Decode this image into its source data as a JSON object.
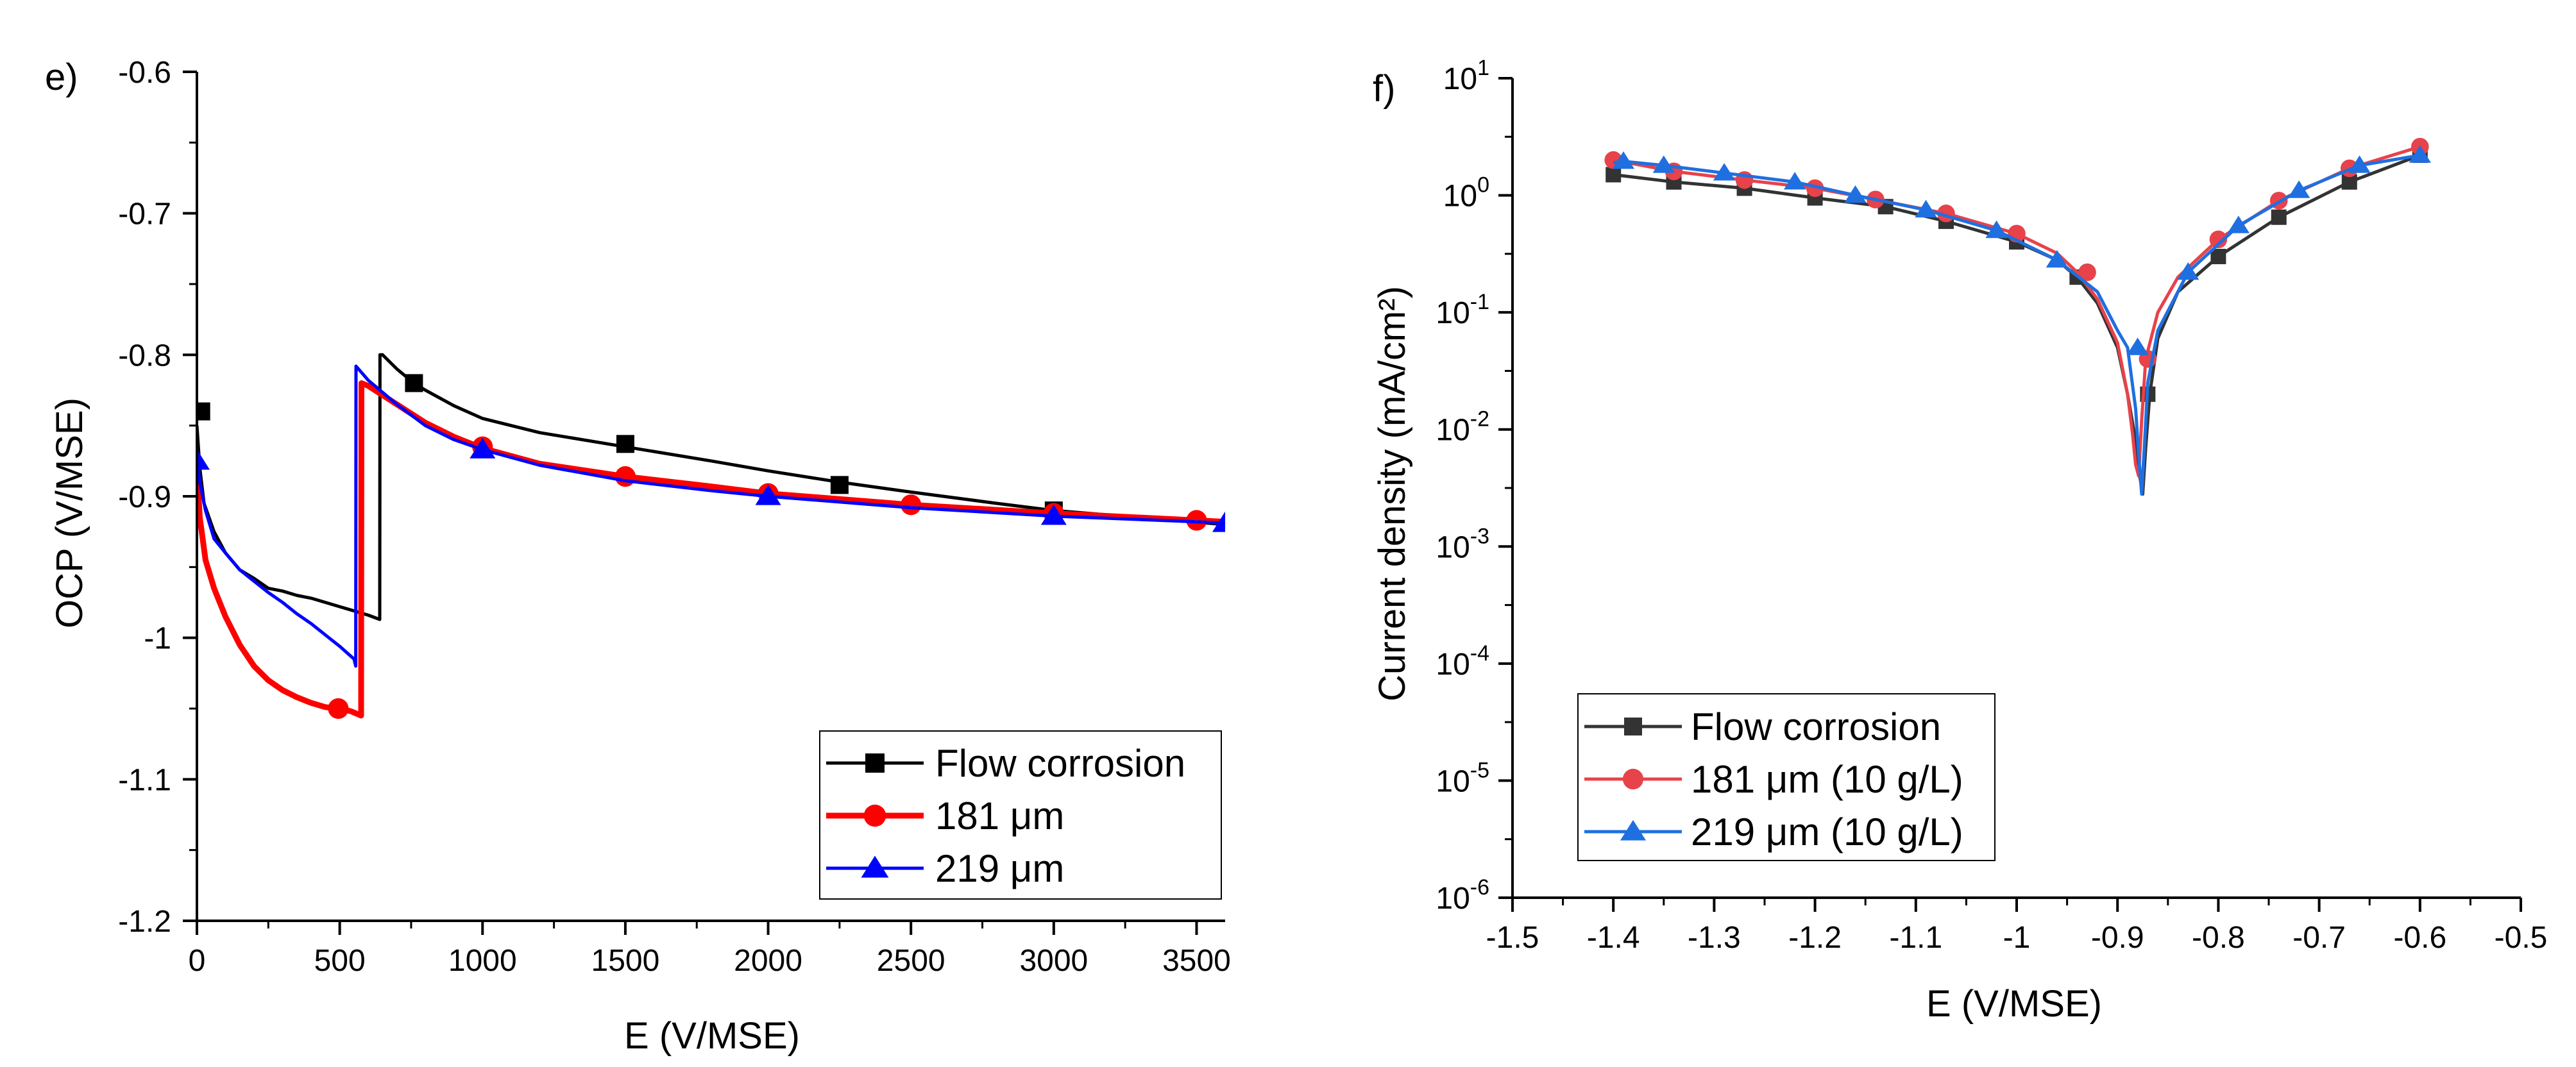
{
  "chart_data": [
    {
      "type": "line",
      "panel_label": "e)",
      "xlabel": "E (V/MSE)",
      "ylabel": "OCP (V/MSE)",
      "xlim": [
        0,
        3600
      ],
      "ylim": [
        -1.2,
        -0.6
      ],
      "xticks": [
        0,
        500,
        1000,
        1500,
        2000,
        2500,
        3000,
        3500
      ],
      "xtick_labels": [
        "0",
        "500",
        "1000",
        "1500",
        "2000",
        "2500",
        "3000",
        "3500"
      ],
      "yticks": [
        -1.2,
        -1.1,
        -1.0,
        -0.9,
        -0.8,
        -0.7,
        -0.6
      ],
      "ytick_labels": [
        "-1.2",
        "-1.1",
        "-1",
        "-0.9",
        "-0.8",
        "-0.7",
        "-0.6"
      ],
      "grid": false,
      "legend_position": "bottom-right",
      "series": [
        {
          "name": "Flow corrosion",
          "color": "#000000",
          "marker": "square",
          "x": [
            0,
            10,
            25,
            60,
            100,
            150,
            200,
            250,
            300,
            350,
            400,
            450,
            500,
            550,
            600,
            640,
            641,
            650,
            700,
            760,
            800,
            900,
            1000,
            1200,
            1500,
            1800,
            2000,
            2250,
            2500,
            2800,
            3000,
            3300,
            3600
          ],
          "y": [
            -0.85,
            -0.88,
            -0.905,
            -0.925,
            -0.94,
            -0.952,
            -0.958,
            -0.965,
            -0.967,
            -0.97,
            -0.972,
            -0.975,
            -0.978,
            -0.981,
            -0.984,
            -0.987,
            -0.8,
            -0.8,
            -0.81,
            -0.82,
            -0.825,
            -0.836,
            -0.845,
            -0.855,
            -0.865,
            -0.875,
            -0.882,
            -0.89,
            -0.897,
            -0.905,
            -0.91,
            -0.915,
            -0.92
          ],
          "marker_x": [
            15,
            760,
            1500,
            2250,
            3000
          ],
          "marker_y": [
            -0.84,
            -0.82,
            -0.863,
            -0.892,
            -0.91
          ]
        },
        {
          "name": "181 μm",
          "color": "#ff0000",
          "marker": "circle",
          "x": [
            0,
            10,
            30,
            60,
            100,
            150,
            200,
            250,
            300,
            350,
            400,
            450,
            500,
            540,
            575,
            576,
            600,
            700,
            800,
            900,
            1000,
            1200,
            1500,
            1800,
            2000,
            2500,
            3000,
            3500,
            3600
          ],
          "y": [
            -0.88,
            -0.915,
            -0.945,
            -0.965,
            -0.985,
            -1.005,
            -1.02,
            -1.03,
            -1.037,
            -1.042,
            -1.046,
            -1.049,
            -1.05,
            -1.052,
            -1.055,
            -0.82,
            -0.822,
            -0.835,
            -0.848,
            -0.858,
            -0.866,
            -0.877,
            -0.886,
            -0.893,
            -0.898,
            -0.906,
            -0.912,
            -0.917,
            -0.918
          ],
          "marker_x": [
            495,
            1000,
            1500,
            2000,
            2500,
            3000,
            3500
          ],
          "marker_y": [
            -1.05,
            -0.865,
            -0.886,
            -0.898,
            -0.906,
            -0.912,
            -0.917
          ]
        },
        {
          "name": "219 μm",
          "color": "#0000ff",
          "marker": "triangle",
          "x": [
            0,
            10,
            30,
            60,
            100,
            150,
            200,
            250,
            300,
            350,
            400,
            450,
            500,
            550,
            556,
            557,
            600,
            700,
            800,
            900,
            1000,
            1200,
            1500,
            1800,
            2000,
            2500,
            3000,
            3500,
            3600
          ],
          "y": [
            -0.87,
            -0.89,
            -0.91,
            -0.93,
            -0.94,
            -0.952,
            -0.96,
            -0.968,
            -0.975,
            -0.983,
            -0.99,
            -0.998,
            -1.006,
            -1.015,
            -1.02,
            -0.808,
            -0.818,
            -0.835,
            -0.85,
            -0.86,
            -0.867,
            -0.878,
            -0.889,
            -0.896,
            -0.9,
            -0.908,
            -0.914,
            -0.918,
            -0.919
          ],
          "marker_x": [
            0,
            1000,
            2000,
            3000,
            3600
          ],
          "marker_y": [
            -0.875,
            -0.867,
            -0.9,
            -0.914,
            -0.919
          ]
        }
      ]
    },
    {
      "type": "line",
      "panel_label": "f)",
      "xlabel": "E (V/MSE)",
      "ylabel": "Current density (mA/cm²)",
      "xlim": [
        -1.5,
        -0.5
      ],
      "ylim": [
        1e-06,
        10
      ],
      "yscale": "log",
      "xticks": [
        -1.5,
        -1.4,
        -1.3,
        -1.2,
        -1.1,
        -1.0,
        -0.9,
        -0.8,
        -0.7,
        -0.6,
        -0.5
      ],
      "xtick_labels": [
        "-1.5",
        "-1.4",
        "-1.3",
        "-1.2",
        "-1.1",
        "-1",
        "-0.9",
        "-0.8",
        "-0.7",
        "-0.6",
        "-0.5"
      ],
      "ytick_exponents": [
        "-6",
        "-5",
        "-4",
        "-3",
        "-2",
        "-1",
        "0",
        "1"
      ],
      "ytick_base": "10",
      "grid": false,
      "legend_position": "bottom-left",
      "series": [
        {
          "name": "Flow corrosion",
          "color": "#333333",
          "marker": "square",
          "x": [
            -1.4,
            -1.34,
            -1.27,
            -1.2,
            -1.13,
            -1.07,
            -1.0,
            -0.96,
            -0.94,
            -0.92,
            -0.9,
            -0.89,
            -0.882,
            -0.878,
            -0.875,
            -0.872,
            -0.868,
            -0.86,
            -0.84,
            -0.8,
            -0.74,
            -0.67,
            -0.6
          ],
          "y": [
            1.5,
            1.3,
            1.15,
            0.95,
            0.8,
            0.6,
            0.4,
            0.28,
            0.2,
            0.12,
            0.05,
            0.02,
            0.008,
            0.004,
            0.0028,
            0.007,
            0.02,
            0.06,
            0.15,
            0.3,
            0.65,
            1.3,
            2.2
          ],
          "marker_x": [
            -1.4,
            -1.34,
            -1.27,
            -1.2,
            -1.13,
            -1.07,
            -1.0,
            -0.94,
            -0.87,
            -0.8,
            -0.74,
            -0.67,
            -0.6
          ],
          "marker_y": [
            1.5,
            1.3,
            1.15,
            0.95,
            0.8,
            0.6,
            0.4,
            0.2,
            0.02,
            0.3,
            0.65,
            1.3,
            2.2
          ]
        },
        {
          "name": "181 μm (10 g/L)",
          "color": "#e8424a",
          "marker": "circle",
          "x": [
            -1.4,
            -1.34,
            -1.27,
            -1.2,
            -1.14,
            -1.07,
            -1.0,
            -0.96,
            -0.94,
            -0.92,
            -0.9,
            -0.89,
            -0.885,
            -0.882,
            -0.879,
            -0.876,
            -0.872,
            -0.86,
            -0.84,
            -0.8,
            -0.74,
            -0.67,
            -0.6
          ],
          "y": [
            2.0,
            1.6,
            1.35,
            1.15,
            0.92,
            0.7,
            0.47,
            0.32,
            0.22,
            0.13,
            0.055,
            0.02,
            0.009,
            0.005,
            0.004,
            0.012,
            0.04,
            0.1,
            0.2,
            0.42,
            0.9,
            1.7,
            2.6
          ],
          "marker_x": [
            -1.4,
            -1.34,
            -1.27,
            -1.2,
            -1.14,
            -1.07,
            -1.0,
            -0.93,
            -0.87,
            -0.8,
            -0.74,
            -0.67,
            -0.6
          ],
          "marker_y": [
            2.0,
            1.6,
            1.35,
            1.15,
            0.92,
            0.7,
            0.47,
            0.22,
            0.04,
            0.42,
            0.9,
            1.7,
            2.6
          ]
        },
        {
          "name": "219 μm (10 g/L)",
          "color": "#1f6fe0",
          "marker": "triangle",
          "x": [
            -1.4,
            -1.39,
            -1.35,
            -1.29,
            -1.22,
            -1.16,
            -1.09,
            -1.02,
            -0.96,
            -0.92,
            -0.9,
            -0.89,
            -0.882,
            -0.879,
            -0.876,
            -0.873,
            -0.87,
            -0.86,
            -0.83,
            -0.78,
            -0.72,
            -0.66,
            -0.6
          ],
          "y": [
            1.9,
            1.95,
            1.8,
            1.55,
            1.3,
            1.0,
            0.75,
            0.5,
            0.28,
            0.15,
            0.07,
            0.05,
            0.015,
            0.006,
            0.0028,
            0.008,
            0.025,
            0.07,
            0.22,
            0.55,
            1.1,
            1.8,
            2.2
          ],
          "marker_x": [
            -1.39,
            -1.35,
            -1.29,
            -1.22,
            -1.16,
            -1.09,
            -1.02,
            -0.96,
            -0.88,
            -0.83,
            -0.78,
            -0.72,
            -0.66,
            -0.6
          ],
          "marker_y": [
            1.95,
            1.8,
            1.55,
            1.3,
            1.0,
            0.75,
            0.5,
            0.28,
            0.05,
            0.22,
            0.55,
            1.1,
            1.8,
            2.2
          ]
        }
      ]
    }
  ]
}
